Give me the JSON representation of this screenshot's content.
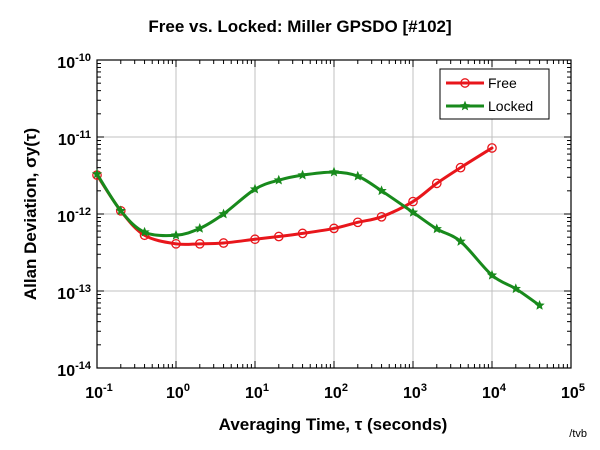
{
  "chart_data": {
    "type": "line",
    "title": "Free vs. Locked: Miller GPSDO [#102]",
    "xlabel": "Averaging Time, τ (seconds)",
    "ylabel": "Allan Deviation, σy(τ)",
    "x_scale": "log",
    "y_scale": "log",
    "xlim": [
      0.1,
      100000
    ],
    "ylim": [
      1e-14,
      1e-10
    ],
    "grid": true,
    "legend_position": "top-right",
    "x_ticks": [
      {
        "base": "10",
        "exp": "-1"
      },
      {
        "base": "10",
        "exp": "0"
      },
      {
        "base": "10",
        "exp": "1"
      },
      {
        "base": "10",
        "exp": "2"
      },
      {
        "base": "10",
        "exp": "3"
      },
      {
        "base": "10",
        "exp": "4"
      },
      {
        "base": "10",
        "exp": "5"
      }
    ],
    "y_ticks": [
      {
        "base": "10",
        "exp": "-14"
      },
      {
        "base": "10",
        "exp": "-13"
      },
      {
        "base": "10",
        "exp": "-12"
      },
      {
        "base": "10",
        "exp": "-11"
      },
      {
        "base": "10",
        "exp": "-10"
      }
    ],
    "series": [
      {
        "name": "Free",
        "color": "#e8161b",
        "marker": "open-circle",
        "points": [
          [
            0.1,
            3.2e-12
          ],
          [
            0.2,
            1.1e-12
          ],
          [
            0.4,
            5.3e-13
          ],
          [
            1,
            4.1e-13
          ],
          [
            2,
            4.1e-13
          ],
          [
            4,
            4.2e-13
          ],
          [
            10,
            4.7e-13
          ],
          [
            20,
            5.1e-13
          ],
          [
            40,
            5.6e-13
          ],
          [
            100,
            6.5e-13
          ],
          [
            200,
            7.8e-13
          ],
          [
            400,
            9.2e-13
          ],
          [
            1000,
            1.45e-12
          ],
          [
            2000,
            2.5e-12
          ],
          [
            4000,
            4e-12
          ],
          [
            10000,
            7.2e-12
          ]
        ]
      },
      {
        "name": "Locked",
        "color": "#188a1c",
        "marker": "filled-star",
        "points": [
          [
            0.1,
            3.3e-12
          ],
          [
            0.2,
            1.1e-12
          ],
          [
            0.4,
            5.8e-13
          ],
          [
            1,
            5.3e-13
          ],
          [
            2,
            6.5e-13
          ],
          [
            4,
            1e-12
          ],
          [
            10,
            2.1e-12
          ],
          [
            20,
            2.75e-12
          ],
          [
            40,
            3.2e-12
          ],
          [
            100,
            3.5e-12
          ],
          [
            200,
            3.1e-12
          ],
          [
            400,
            2e-12
          ],
          [
            1000,
            1.05e-12
          ],
          [
            2000,
            6.4e-13
          ],
          [
            4000,
            4.4e-13
          ],
          [
            10000,
            1.6e-13
          ],
          [
            20000,
            1.07e-13
          ],
          [
            40000,
            6.5e-14
          ]
        ]
      }
    ]
  },
  "footer": {
    "credit": "/tvb"
  }
}
